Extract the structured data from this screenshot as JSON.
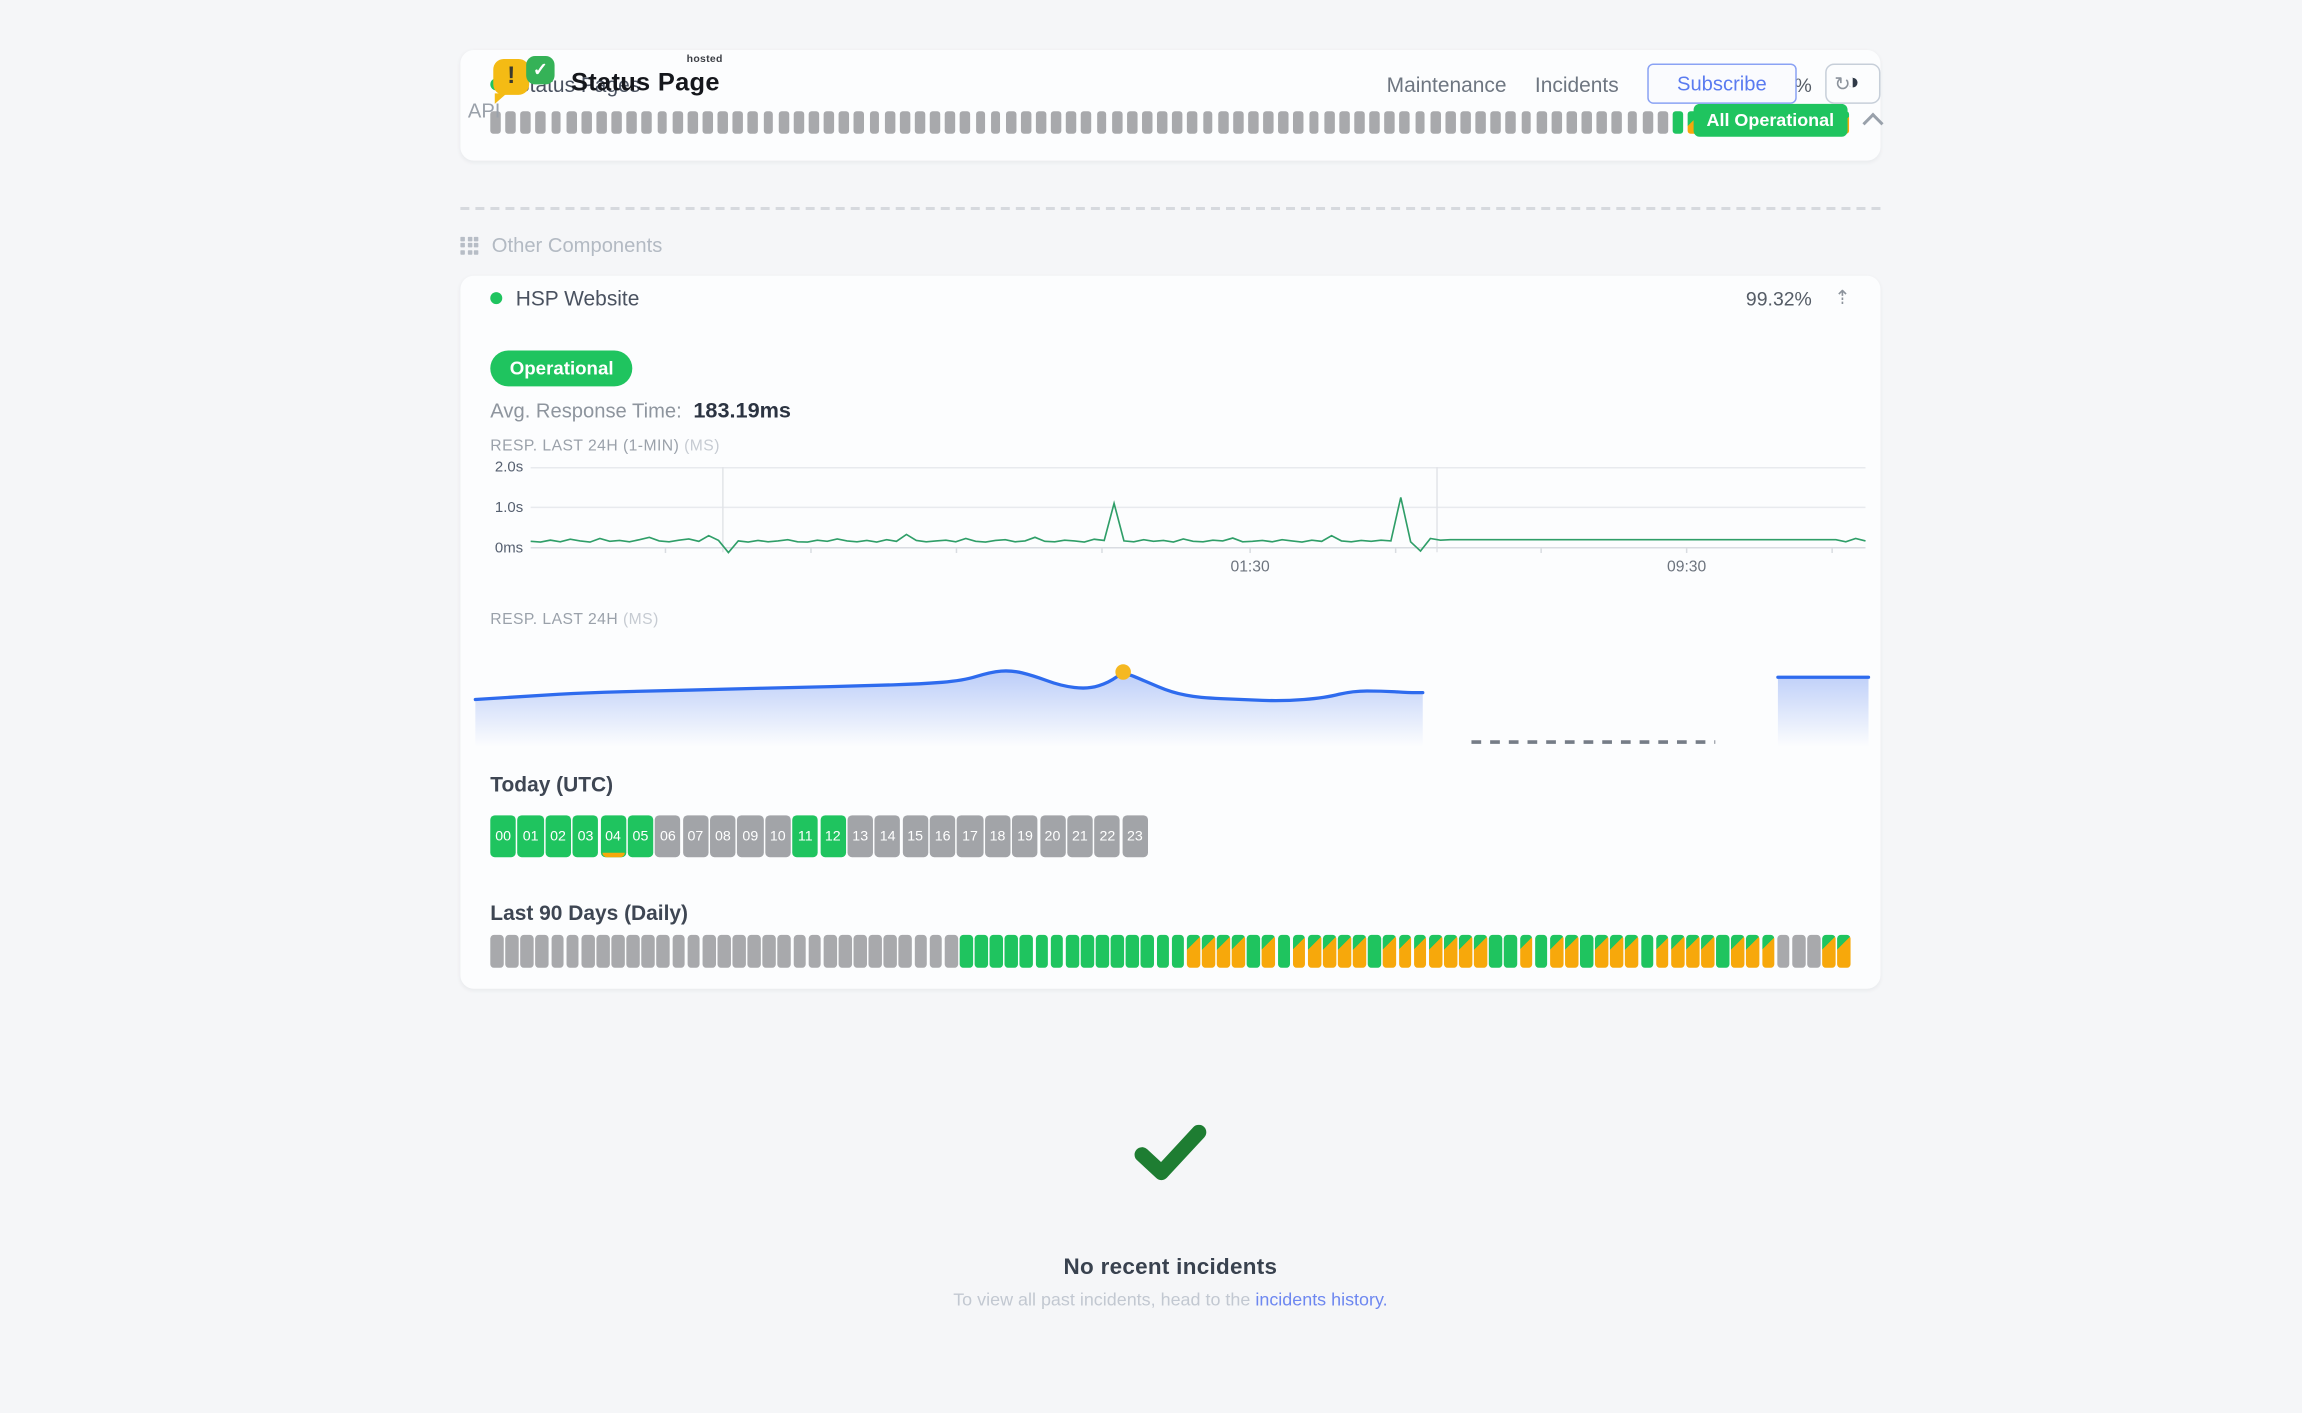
{
  "brand": {
    "name": "Status Page",
    "superscript": "hosted",
    "exclaim": "!",
    "check": "✓"
  },
  "nav": {
    "items": [
      "Maintenance",
      "Incidents"
    ],
    "subscribe_label": "Subscribe",
    "theme_icon_glyph": "◑",
    "overall_status": "All Operational"
  },
  "api_section": {
    "title": "API",
    "component_name": "Status Pages",
    "uptime_pct": "99.91%",
    "refresh_icon": "↻",
    "bars": [
      "none",
      "none",
      "none",
      "none",
      "none",
      "none",
      "none",
      "none",
      "none",
      "none",
      "none",
      "none",
      "none",
      "none",
      "none",
      "none",
      "none",
      "none",
      "none",
      "none",
      "none",
      "none",
      "none",
      "none",
      "none",
      "none",
      "none",
      "none",
      "none",
      "none",
      "none",
      "none",
      "none",
      "none",
      "none",
      "none",
      "none",
      "none",
      "none",
      "none",
      "none",
      "none",
      "none",
      "none",
      "none",
      "none",
      "none",
      "none",
      "none",
      "none",
      "none",
      "none",
      "none",
      "none",
      "none",
      "none",
      "none",
      "none",
      "none",
      "none",
      "none",
      "none",
      "none",
      "none",
      "none",
      "none",
      "none",
      "none",
      "none",
      "none",
      "none",
      "none",
      "none",
      "none",
      "none",
      "none",
      "none",
      "none",
      "up",
      "partial",
      "partial",
      "partial",
      "partial",
      "partial",
      "partial",
      "none",
      "none",
      "none",
      "up",
      "partial"
    ]
  },
  "other_section": {
    "title": "Other Components",
    "component_name": "HSP Website",
    "uptime_pct": "99.32%",
    "up_arrow_icon": "⇡",
    "status_badge": "Operational",
    "avg_response_label": "Avg. Response Time:",
    "avg_response_value": "183.19ms",
    "today_label": "Today (UTC)",
    "hours": [
      {
        "label": "00",
        "state": "up"
      },
      {
        "label": "01",
        "state": "up"
      },
      {
        "label": "02",
        "state": "up"
      },
      {
        "label": "03",
        "state": "up"
      },
      {
        "label": "04",
        "state": "up",
        "marker": true
      },
      {
        "label": "05",
        "state": "up"
      },
      {
        "label": "06",
        "state": "none"
      },
      {
        "label": "07",
        "state": "none"
      },
      {
        "label": "08",
        "state": "none"
      },
      {
        "label": "09",
        "state": "none"
      },
      {
        "label": "10",
        "state": "none"
      },
      {
        "label": "11",
        "state": "up"
      },
      {
        "label": "12",
        "state": "up"
      },
      {
        "label": "13",
        "state": "none"
      },
      {
        "label": "14",
        "state": "none"
      },
      {
        "label": "15",
        "state": "none"
      },
      {
        "label": "16",
        "state": "none"
      },
      {
        "label": "17",
        "state": "none"
      },
      {
        "label": "18",
        "state": "none"
      },
      {
        "label": "19",
        "state": "none"
      },
      {
        "label": "20",
        "state": "none"
      },
      {
        "label": "21",
        "state": "none"
      },
      {
        "label": "22",
        "state": "none"
      },
      {
        "label": "23",
        "state": "none"
      }
    ],
    "last90_label": "Last 90 Days (Daily)",
    "last90_bars": [
      "none",
      "none",
      "none",
      "none",
      "none",
      "none",
      "none",
      "none",
      "none",
      "none",
      "none",
      "none",
      "none",
      "none",
      "none",
      "none",
      "none",
      "none",
      "none",
      "none",
      "none",
      "none",
      "none",
      "none",
      "none",
      "none",
      "none",
      "none",
      "none",
      "none",
      "none",
      "up",
      "up",
      "up",
      "up",
      "up",
      "up",
      "up",
      "up",
      "up",
      "up",
      "up",
      "up",
      "up",
      "up",
      "up",
      "partial",
      "partial",
      "partial",
      "partial",
      "up",
      "partial",
      "up",
      "partial",
      "partial",
      "partial",
      "partial",
      "partial",
      "up",
      "partial",
      "partial",
      "partial",
      "partial",
      "partial",
      "partial",
      "partial",
      "up",
      "up",
      "partial",
      "up",
      "partial",
      "partial",
      "up",
      "partial",
      "partial",
      "partial",
      "up",
      "partial",
      "partial",
      "partial",
      "partial",
      "up",
      "partial",
      "partial",
      "partial",
      "none",
      "none",
      "none",
      "partial",
      "partial"
    ]
  },
  "incidents": {
    "title": "No recent incidents",
    "subtext_prefix": "To view all past incidents, head to the ",
    "link_label": "incidents history."
  },
  "chart_data": [
    {
      "type": "line",
      "title": "RESP. LAST 24H (1-MIN)",
      "unit": "(MS)",
      "ylim_ms": [
        0,
        2000
      ],
      "ylabel_ticks": [
        {
          "label": "2.0s",
          "ms": 2000
        },
        {
          "label": "1.0s",
          "ms": 1000
        },
        {
          "label": "0ms",
          "ms": 0
        }
      ],
      "x_tick_labels": [
        {
          "pct": 53.9,
          "label": "01:30"
        },
        {
          "pct": 86.6,
          "label": "09:30"
        }
      ],
      "x_gridlines_pct": [
        14.4,
        67.9
      ],
      "x_ticks_pct": [
        10.1,
        21,
        31.9,
        42.8,
        53.9,
        64.8,
        75.7,
        86.6,
        97.5
      ],
      "values_ms": [
        160,
        140,
        190,
        150,
        210,
        170,
        140,
        230,
        160,
        180,
        150,
        200,
        260,
        170,
        150,
        190,
        220,
        160,
        300,
        180,
        -120,
        170,
        140,
        180,
        150,
        170,
        200,
        150,
        140,
        190,
        160,
        220,
        170,
        150,
        180,
        140,
        200,
        160,
        330,
        180,
        150,
        170,
        190,
        150,
        230,
        160,
        140,
        180,
        200,
        150,
        170,
        260,
        160,
        150,
        190,
        170,
        140,
        210,
        180,
        1100,
        170,
        150,
        200,
        160,
        180,
        140,
        220,
        160,
        150,
        190,
        170,
        240,
        150,
        160,
        180,
        150,
        200,
        170,
        140,
        190,
        160,
        300,
        170,
        150,
        180,
        160,
        190,
        170,
        1250,
        150,
        -80,
        230,
        190,
        200,
        200,
        200,
        200,
        200,
        200,
        200,
        200,
        200,
        200,
        200,
        200,
        200,
        200,
        200,
        200,
        200,
        200,
        200,
        200,
        200,
        200,
        200,
        200,
        200,
        200,
        200,
        200,
        200,
        200,
        200,
        200,
        200,
        200,
        200,
        200,
        200,
        200,
        200,
        200,
        150,
        230,
        170
      ]
    },
    {
      "type": "area",
      "title": "RESP. LAST 24H",
      "unit": "(MS)",
      "segments": [
        {
          "points": [
            [
              0,
              170
            ],
            [
              4,
              172
            ],
            [
              8,
              174
            ],
            [
              13,
              175
            ],
            [
              18,
              176
            ],
            [
              23,
              177
            ],
            [
              28,
              178
            ],
            [
              32,
              179
            ],
            [
              35,
              181
            ],
            [
              37,
              186
            ],
            [
              38.5,
              187
            ],
            [
              40,
              184
            ],
            [
              42,
              178
            ],
            [
              44,
              176
            ],
            [
              45.5,
              180
            ],
            [
              46.5,
              186
            ],
            [
              48,
              181
            ],
            [
              50,
              174
            ],
            [
              52,
              171
            ],
            [
              55,
              170
            ],
            [
              58,
              169
            ],
            [
              61,
              171
            ],
            [
              63,
              175
            ],
            [
              65,
              175
            ],
            [
              67,
              174
            ],
            [
              68,
              174
            ]
          ]
        },
        {
          "points": [
            [
              93.5,
              183
            ],
            [
              100,
              183
            ]
          ]
        }
      ],
      "gap_dash_pct": [
        71.5,
        89
      ],
      "marker": {
        "pct": 46.5,
        "ms": 186
      }
    }
  ],
  "colors": {
    "status_green": "#1fc45f",
    "degraded_orange": "#f7a80b",
    "nodata_gray": "#a8a9ac",
    "line_green": "#2f9e68",
    "line_blue": "#2e6bee",
    "marker_yellow": "#f5b821",
    "link_blue": "#6d87f0",
    "check_green": "#1e7d32"
  }
}
